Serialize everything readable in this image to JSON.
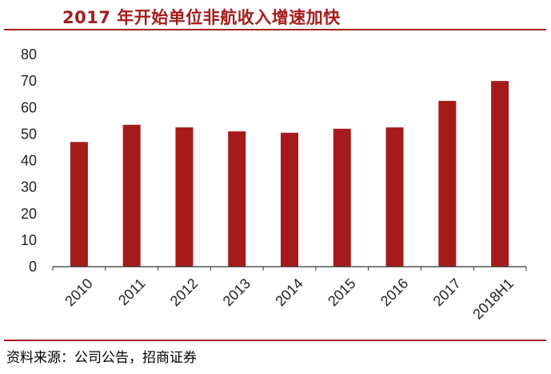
{
  "title": "2017 年开始单位非航收入增速加快",
  "source": "资料来源：公司公告，招商证券",
  "colors": {
    "bar": "#a51b1b",
    "accent": "#a51b1b",
    "axis": "#333333",
    "text": "#222222"
  },
  "chart_data": {
    "type": "bar",
    "title": "2017 年开始单位非航收入增速加快",
    "xlabel": "",
    "ylabel": "",
    "categories": [
      "2010",
      "2011",
      "2012",
      "2013",
      "2014",
      "2015",
      "2016",
      "2017",
      "2018H1"
    ],
    "values": [
      47,
      53.5,
      52.5,
      51,
      50.5,
      52,
      52.5,
      62.5,
      70
    ],
    "ylim": [
      0,
      80
    ],
    "yticks": [
      0,
      10,
      20,
      30,
      40,
      50,
      60,
      70,
      80
    ],
    "grid": false,
    "legend": "none"
  }
}
